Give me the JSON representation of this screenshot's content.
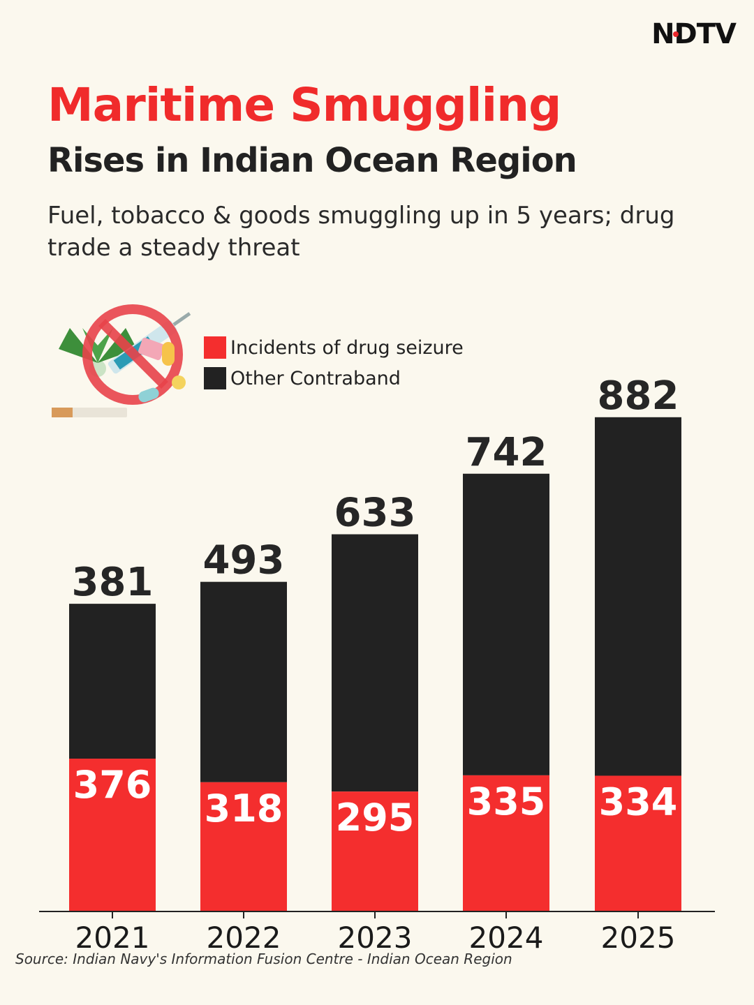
{
  "brand": "NDTV",
  "title_line1": "Maritime Smuggling",
  "title_line2": "Rises in Indian Ocean Region",
  "subtitle": "Fuel, tobacco & goods smuggling up in 5 years; drug trade a steady threat",
  "source": "Source: Indian Navy's Information Fusion Centre - Indian Ocean Region",
  "colors": {
    "drug": "#f42e2e",
    "other": "#222222",
    "title_red": "#f02b2b",
    "background": "#fbf8ee"
  },
  "illustration": {
    "icon": "no-drugs-icon"
  },
  "chart_data": {
    "type": "bar",
    "stacked": true,
    "categories": [
      "2021",
      "2022",
      "2023",
      "2024",
      "2025"
    ],
    "series": [
      {
        "name": "Incidents of drug seizure",
        "values": [
          376,
          318,
          295,
          335,
          334
        ],
        "color": "#f42e2e"
      },
      {
        "name": "Other Contraband",
        "values": [
          381,
          493,
          633,
          742,
          882
        ],
        "color": "#222222"
      }
    ],
    "legend_position": "top-left",
    "grid": false
  }
}
